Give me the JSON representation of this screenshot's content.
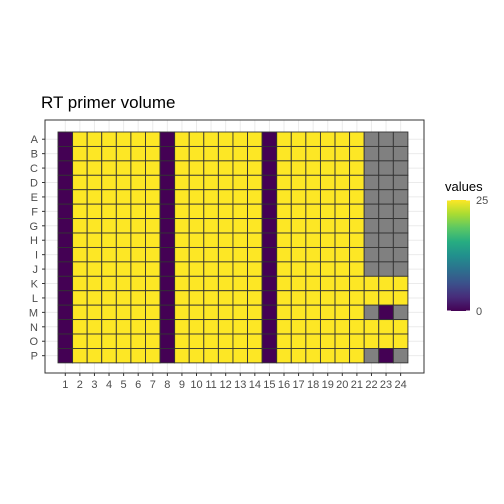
{
  "chart_data": {
    "type": "heatmap",
    "title": "RT primer volume",
    "xlabel": "",
    "ylabel": "",
    "rows": [
      "A",
      "B",
      "C",
      "D",
      "E",
      "F",
      "G",
      "H",
      "I",
      "J",
      "K",
      "L",
      "M",
      "N",
      "O",
      "P"
    ],
    "cols": [
      1,
      2,
      3,
      4,
      5,
      6,
      7,
      8,
      9,
      10,
      11,
      12,
      13,
      14,
      15,
      16,
      17,
      18,
      19,
      20,
      21,
      22,
      23,
      24
    ],
    "values": [
      [
        0,
        25,
        25,
        25,
        25,
        25,
        25,
        0,
        25,
        25,
        25,
        25,
        25,
        25,
        0,
        25,
        25,
        25,
        25,
        25,
        25,
        null,
        null,
        null
      ],
      [
        0,
        25,
        25,
        25,
        25,
        25,
        25,
        0,
        25,
        25,
        25,
        25,
        25,
        25,
        0,
        25,
        25,
        25,
        25,
        25,
        25,
        null,
        null,
        null
      ],
      [
        0,
        25,
        25,
        25,
        25,
        25,
        25,
        0,
        25,
        25,
        25,
        25,
        25,
        25,
        0,
        25,
        25,
        25,
        25,
        25,
        25,
        null,
        null,
        null
      ],
      [
        0,
        25,
        25,
        25,
        25,
        25,
        25,
        0,
        25,
        25,
        25,
        25,
        25,
        25,
        0,
        25,
        25,
        25,
        25,
        25,
        25,
        null,
        null,
        null
      ],
      [
        0,
        25,
        25,
        25,
        25,
        25,
        25,
        0,
        25,
        25,
        25,
        25,
        25,
        25,
        0,
        25,
        25,
        25,
        25,
        25,
        25,
        null,
        null,
        null
      ],
      [
        0,
        25,
        25,
        25,
        25,
        25,
        25,
        0,
        25,
        25,
        25,
        25,
        25,
        25,
        0,
        25,
        25,
        25,
        25,
        25,
        25,
        null,
        null,
        null
      ],
      [
        0,
        25,
        25,
        25,
        25,
        25,
        25,
        0,
        25,
        25,
        25,
        25,
        25,
        25,
        0,
        25,
        25,
        25,
        25,
        25,
        25,
        null,
        null,
        null
      ],
      [
        0,
        25,
        25,
        25,
        25,
        25,
        25,
        0,
        25,
        25,
        25,
        25,
        25,
        25,
        0,
        25,
        25,
        25,
        25,
        25,
        25,
        null,
        null,
        null
      ],
      [
        0,
        25,
        25,
        25,
        25,
        25,
        25,
        0,
        25,
        25,
        25,
        25,
        25,
        25,
        0,
        25,
        25,
        25,
        25,
        25,
        25,
        null,
        null,
        null
      ],
      [
        0,
        25,
        25,
        25,
        25,
        25,
        25,
        0,
        25,
        25,
        25,
        25,
        25,
        25,
        0,
        25,
        25,
        25,
        25,
        25,
        25,
        null,
        null,
        null
      ],
      [
        0,
        25,
        25,
        25,
        25,
        25,
        25,
        0,
        25,
        25,
        25,
        25,
        25,
        25,
        0,
        25,
        25,
        25,
        25,
        25,
        25,
        25,
        25,
        25
      ],
      [
        0,
        25,
        25,
        25,
        25,
        25,
        25,
        0,
        25,
        25,
        25,
        25,
        25,
        25,
        0,
        25,
        25,
        25,
        25,
        25,
        25,
        25,
        25,
        25
      ],
      [
        0,
        25,
        25,
        25,
        25,
        25,
        25,
        0,
        25,
        25,
        25,
        25,
        25,
        25,
        0,
        25,
        25,
        25,
        25,
        25,
        25,
        null,
        0,
        null
      ],
      [
        0,
        25,
        25,
        25,
        25,
        25,
        25,
        0,
        25,
        25,
        25,
        25,
        25,
        25,
        0,
        25,
        25,
        25,
        25,
        25,
        25,
        25,
        25,
        25
      ],
      [
        0,
        25,
        25,
        25,
        25,
        25,
        25,
        0,
        25,
        25,
        25,
        25,
        25,
        25,
        0,
        25,
        25,
        25,
        25,
        25,
        25,
        25,
        25,
        25
      ],
      [
        0,
        25,
        25,
        25,
        25,
        25,
        25,
        0,
        25,
        25,
        25,
        25,
        25,
        25,
        0,
        25,
        25,
        25,
        25,
        25,
        25,
        null,
        0,
        null
      ]
    ],
    "na_color": "#808080",
    "colorscale": "viridis",
    "range": [
      0,
      25
    ],
    "grid": true,
    "legend": {
      "title": "values",
      "position": "right",
      "ticks": [
        0,
        25
      ]
    }
  }
}
